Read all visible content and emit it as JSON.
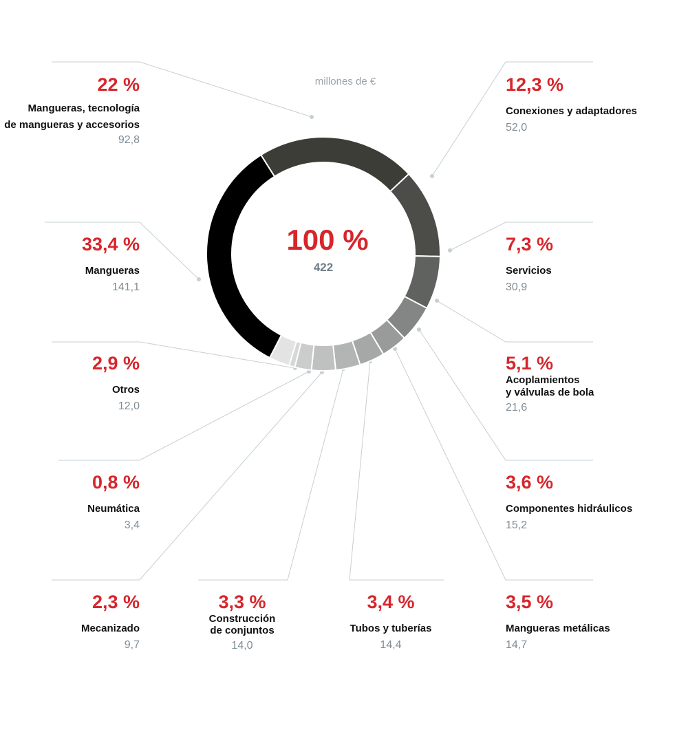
{
  "chart_data": {
    "type": "pie",
    "variant": "donut",
    "unit_label": "millones de €",
    "center": {
      "percent": "100 %",
      "value": "422"
    },
    "series": [
      {
        "name": "Mangueras, tecnología de mangueras y accesorios",
        "label_lines": [
          "Mangueras, tecnología",
          "de mangueras y accesorios"
        ],
        "percent": 22.0,
        "percent_label": "22 %",
        "value": 92.8,
        "value_label": "92,8",
        "color": "#3d3d37"
      },
      {
        "name": "Conexiones y adaptadores",
        "label_lines": [
          "Conexiones y adaptadores"
        ],
        "percent": 12.3,
        "percent_label": "12,3 %",
        "value": 52.0,
        "value_label": "52,0",
        "color": "#4c4d48"
      },
      {
        "name": "Servicios",
        "label_lines": [
          "Servicios"
        ],
        "percent": 7.3,
        "percent_label": "7,3 %",
        "value": 30.9,
        "value_label": "30,9",
        "color": "#60625f"
      },
      {
        "name": "Acoplamientos y válvulas de bola",
        "label_lines": [
          "Acoplamientos",
          "y válvulas de bola"
        ],
        "percent": 5.1,
        "percent_label": "5,1 %",
        "value": 21.6,
        "value_label": "21,6",
        "color": "#838685"
      },
      {
        "name": "Componentes hidráulicos",
        "label_lines": [
          "Componentes hidráulicos"
        ],
        "percent": 3.6,
        "percent_label": "3,6 %",
        "value": 15.2,
        "value_label": "15,2",
        "color": "#989b9a"
      },
      {
        "name": "Mangueras metálicas",
        "label_lines": [
          "Mangueras metálicas"
        ],
        "percent": 3.5,
        "percent_label": "3,5 %",
        "value": 14.7,
        "value_label": "14,7",
        "color": "#a6a8a7"
      },
      {
        "name": "Tubos y tuberías",
        "label_lines": [
          "Tubos y tuberías"
        ],
        "percent": 3.4,
        "percent_label": "3,4 %",
        "value": 14.4,
        "value_label": "14,4",
        "color": "#b3b5b4"
      },
      {
        "name": "Construcción de conjuntos",
        "label_lines": [
          "Construcción",
          "de conjuntos"
        ],
        "percent": 3.3,
        "percent_label": "3,3 %",
        "value": 14.0,
        "value_label": "14,0",
        "color": "#bfc1c0"
      },
      {
        "name": "Mecanizado",
        "label_lines": [
          "Mecanizado"
        ],
        "percent": 2.3,
        "percent_label": "2,3 %",
        "value": 9.7,
        "value_label": "9,7",
        "color": "#cbcdcc"
      },
      {
        "name": "Neumática",
        "label_lines": [
          "Neumática"
        ],
        "percent": 0.8,
        "percent_label": "0,8 %",
        "value": 3.4,
        "value_label": "3,4",
        "color": "#d6d8d7"
      },
      {
        "name": "Otros",
        "label_lines": [
          "Otros"
        ],
        "percent": 2.9,
        "percent_label": "2,9 %",
        "value": 12.0,
        "value_label": "12,0",
        "color": "#e2e3e2"
      },
      {
        "name": "Mangueras",
        "label_lines": [
          "Mangueras"
        ],
        "percent": 33.4,
        "percent_label": "33,4 %",
        "value": 141.1,
        "value_label": "141,1",
        "color": "#000000"
      }
    ]
  }
}
